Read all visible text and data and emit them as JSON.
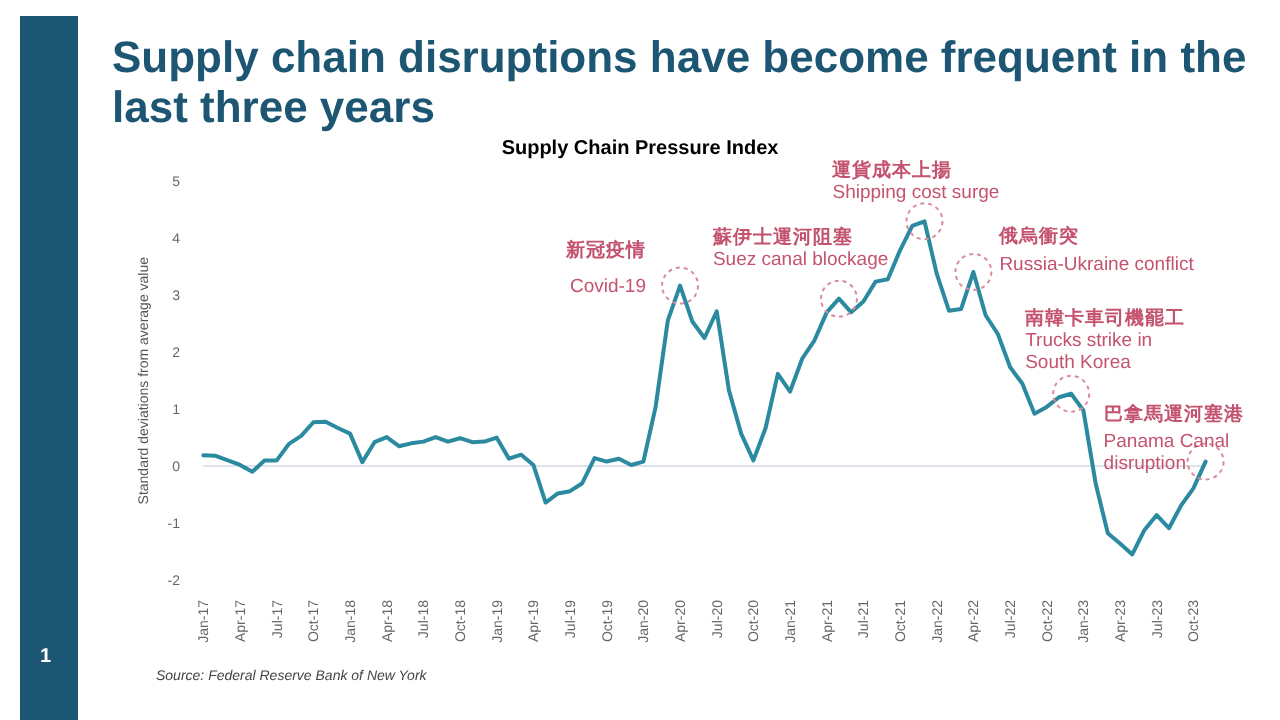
{
  "chart_data": {
    "type": "line",
    "title": "Supply chain disruptions have become frequent in the last three years",
    "subtitle": "Supply Chain Pressure Index",
    "ylabel": "Standard deviations from average value",
    "x": [
      "2017-01",
      "2017-02",
      "2017-03",
      "2017-04",
      "2017-05",
      "2017-06",
      "2017-07",
      "2017-08",
      "2017-09",
      "2017-10",
      "2017-11",
      "2017-12",
      "2018-01",
      "2018-02",
      "2018-03",
      "2018-04",
      "2018-05",
      "2018-06",
      "2018-07",
      "2018-08",
      "2018-09",
      "2018-10",
      "2018-11",
      "2018-12",
      "2019-01",
      "2019-02",
      "2019-03",
      "2019-04",
      "2019-05",
      "2019-06",
      "2019-07",
      "2019-08",
      "2019-09",
      "2019-10",
      "2019-11",
      "2019-12",
      "2020-01",
      "2020-02",
      "2020-03",
      "2020-04",
      "2020-05",
      "2020-06",
      "2020-07",
      "2020-08",
      "2020-09",
      "2020-10",
      "2020-11",
      "2020-12",
      "2021-01",
      "2021-02",
      "2021-03",
      "2021-04",
      "2021-05",
      "2021-06",
      "2021-07",
      "2021-08",
      "2021-09",
      "2021-10",
      "2021-11",
      "2021-12",
      "2022-01",
      "2022-02",
      "2022-03",
      "2022-04",
      "2022-05",
      "2022-06",
      "2022-07",
      "2022-08",
      "2022-09",
      "2022-10",
      "2022-11",
      "2022-12",
      "2023-01",
      "2023-02",
      "2023-03",
      "2023-04",
      "2023-05",
      "2023-06",
      "2023-07",
      "2023-08",
      "2023-09",
      "2023-10",
      "2023-11"
    ],
    "series": [
      {
        "color": "#2b8aa0",
        "values": [
          0.19,
          0.18,
          0.1,
          0.02,
          -0.1,
          0.1,
          0.1,
          0.39,
          0.53,
          0.77,
          0.78,
          0.67,
          0.57,
          0.07,
          0.42,
          0.51,
          0.35,
          0.4,
          0.43,
          0.51,
          0.43,
          0.49,
          0.42,
          0.43,
          0.5,
          0.13,
          0.2,
          0.02,
          -0.64,
          -0.48,
          -0.44,
          -0.3,
          0.14,
          0.08,
          0.13,
          0.02,
          0.08,
          1.04,
          2.56,
          3.17,
          2.54,
          2.25,
          2.72,
          1.33,
          0.57,
          0.1,
          0.67,
          1.62,
          1.31,
          1.89,
          2.21,
          2.7,
          2.94,
          2.7,
          2.89,
          3.24,
          3.28,
          3.79,
          4.22,
          4.3,
          3.38,
          2.73,
          2.76,
          3.41,
          2.65,
          2.32,
          1.74,
          1.45,
          0.92,
          1.04,
          1.21,
          1.27,
          0.98,
          -0.3,
          -1.18,
          -1.36,
          -1.55,
          -1.12,
          -0.86,
          -1.09,
          -0.69,
          -0.39,
          0.08
        ]
      }
    ],
    "xlim": [
      "2017-01",
      "2023-11"
    ],
    "xticks": [
      {
        "value": "2017-01",
        "label": "Jan-17"
      },
      {
        "value": "2017-04",
        "label": "Apr-17"
      },
      {
        "value": "2017-07",
        "label": "Jul-17"
      },
      {
        "value": "2017-10",
        "label": "Oct-17"
      },
      {
        "value": "2018-01",
        "label": "Jan-18"
      },
      {
        "value": "2018-04",
        "label": "Apr-18"
      },
      {
        "value": "2018-07",
        "label": "Jul-18"
      },
      {
        "value": "2018-10",
        "label": "Oct-18"
      },
      {
        "value": "2019-01",
        "label": "Jan-19"
      },
      {
        "value": "2019-04",
        "label": "Apr-19"
      },
      {
        "value": "2019-07",
        "label": "Jul-19"
      },
      {
        "value": "2019-10",
        "label": "Oct-19"
      },
      {
        "value": "2020-01",
        "label": "Jan-20"
      },
      {
        "value": "2020-04",
        "label": "Apr-20"
      },
      {
        "value": "2020-07",
        "label": "Jul-20"
      },
      {
        "value": "2020-10",
        "label": "Oct-20"
      },
      {
        "value": "2021-01",
        "label": "Jan-21"
      },
      {
        "value": "2021-04",
        "label": "Apr-21"
      },
      {
        "value": "2021-07",
        "label": "Jul-21"
      },
      {
        "value": "2021-10",
        "label": "Oct-21"
      },
      {
        "value": "2022-01",
        "label": "Jan-22"
      },
      {
        "value": "2022-04",
        "label": "Apr-22"
      },
      {
        "value": "2022-07",
        "label": "Jul-22"
      },
      {
        "value": "2022-10",
        "label": "Oct-22"
      },
      {
        "value": "2023-01",
        "label": "Jan-23"
      },
      {
        "value": "2023-04",
        "label": "Apr-23"
      },
      {
        "value": "2023-07",
        "label": "Jul-23"
      },
      {
        "value": "2023-10",
        "label": "Oct-23"
      }
    ],
    "ylim": [
      -2,
      5
    ],
    "yticks": [
      -2,
      -1,
      0,
      1,
      2,
      3,
      4,
      5
    ],
    "ref_lines": [
      {
        "axis": "y",
        "value": 0,
        "color": "#dde3e8"
      }
    ],
    "annotations": [
      {
        "text": "新冠疫情\nCovid-19",
        "x": "2020-04",
        "y": 3.17
      },
      {
        "text": "蘇伊士運河阻塞\nSuez canal blockage",
        "x": "2021-05",
        "y": 2.94
      },
      {
        "text": "運貨成本上揚\nShipping cost surge",
        "x": "2021-12",
        "y": 4.3
      },
      {
        "text": "俄烏衝突\nRussia-Ukraine conflict",
        "x": "2022-04",
        "y": 3.41
      },
      {
        "text": "南韓卡車司機罷工\nTrucks strike in\nSouth Korea",
        "x": "2022-12",
        "y": 1.27
      },
      {
        "text": "巴拿馬運河塞港\nPanama Canal\ndisruption",
        "x": "2023-11",
        "y": 0.08
      },
      "Source: Federal Reserve Bank of New York",
      "1"
    ]
  }
}
